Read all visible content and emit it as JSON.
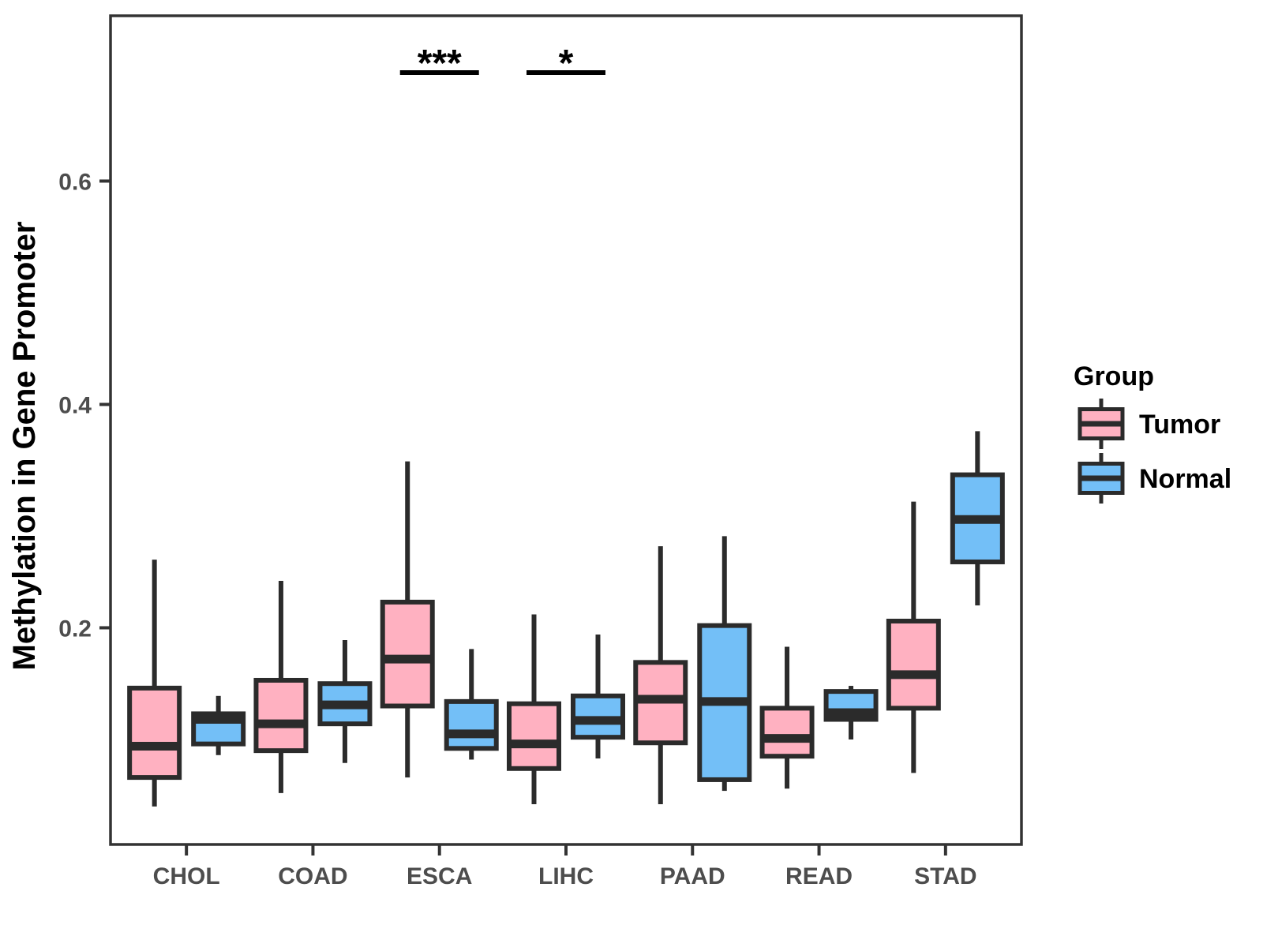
{
  "chart_data": {
    "type": "boxplot",
    "title": "",
    "xlabel": "",
    "ylabel": "Methylation in Gene Promoter",
    "categories": [
      "CHOL",
      "COAD",
      "ESCA",
      "LIHC",
      "PAAD",
      "READ",
      "STAD"
    ],
    "yticks": [
      "0.2",
      "0.4",
      "0.6"
    ],
    "ytick_values": [
      0.2,
      0.4,
      0.6
    ],
    "ylim": [
      0.0,
      0.75
    ],
    "grid": "off",
    "legend": {
      "title": "Group",
      "position": "right",
      "entries": [
        {
          "label": "Tumor",
          "color": "#FFB1C1"
        },
        {
          "label": "Normal",
          "color": "#73BFF7"
        }
      ]
    },
    "series": [
      {
        "name": "Tumor",
        "color": "#FFB1C1",
        "boxes": [
          {
            "category": "CHOL",
            "min": 0.04,
            "q1": 0.066,
            "median": 0.094,
            "q3": 0.146,
            "max": 0.261
          },
          {
            "category": "COAD",
            "min": 0.052,
            "q1": 0.09,
            "median": 0.114,
            "q3": 0.153,
            "max": 0.242
          },
          {
            "category": "ESCA",
            "min": 0.066,
            "q1": 0.13,
            "median": 0.172,
            "q3": 0.223,
            "max": 0.349
          },
          {
            "category": "LIHC",
            "min": 0.042,
            "q1": 0.074,
            "median": 0.096,
            "q3": 0.132,
            "max": 0.212
          },
          {
            "category": "PAAD",
            "min": 0.042,
            "q1": 0.097,
            "median": 0.136,
            "q3": 0.169,
            "max": 0.273
          },
          {
            "category": "READ",
            "min": 0.056,
            "q1": 0.085,
            "median": 0.101,
            "q3": 0.128,
            "max": 0.183
          },
          {
            "category": "STAD",
            "min": 0.07,
            "q1": 0.128,
            "median": 0.158,
            "q3": 0.206,
            "max": 0.313
          }
        ]
      },
      {
        "name": "Normal",
        "color": "#73BFF7",
        "boxes": [
          {
            "category": "CHOL",
            "min": 0.086,
            "q1": 0.096,
            "median": 0.118,
            "q3": 0.123,
            "max": 0.139
          },
          {
            "category": "COAD",
            "min": 0.079,
            "q1": 0.114,
            "median": 0.131,
            "q3": 0.15,
            "max": 0.189
          },
          {
            "category": "ESCA",
            "min": 0.082,
            "q1": 0.092,
            "median": 0.105,
            "q3": 0.134,
            "max": 0.181
          },
          {
            "category": "LIHC",
            "min": 0.083,
            "q1": 0.102,
            "median": 0.117,
            "q3": 0.139,
            "max": 0.194
          },
          {
            "category": "PAAD",
            "min": 0.054,
            "q1": 0.064,
            "median": 0.134,
            "q3": 0.202,
            "max": 0.282
          },
          {
            "category": "READ",
            "min": 0.1,
            "q1": 0.118,
            "median": 0.124,
            "q3": 0.143,
            "max": 0.148
          },
          {
            "category": "STAD",
            "min": 0.22,
            "q1": 0.259,
            "median": 0.297,
            "q3": 0.337,
            "max": 0.376
          }
        ]
      }
    ],
    "annotations": [
      {
        "category": "ESCA",
        "label": "***"
      },
      {
        "category": "LIHC",
        "label": "*"
      }
    ],
    "styles": {
      "box_stroke": "#2B2B2B",
      "axis_text_color": "#4D4D4D",
      "panel_border_color": "#333333",
      "annotation_color": "#000000",
      "background": "#FFFFFF"
    }
  }
}
